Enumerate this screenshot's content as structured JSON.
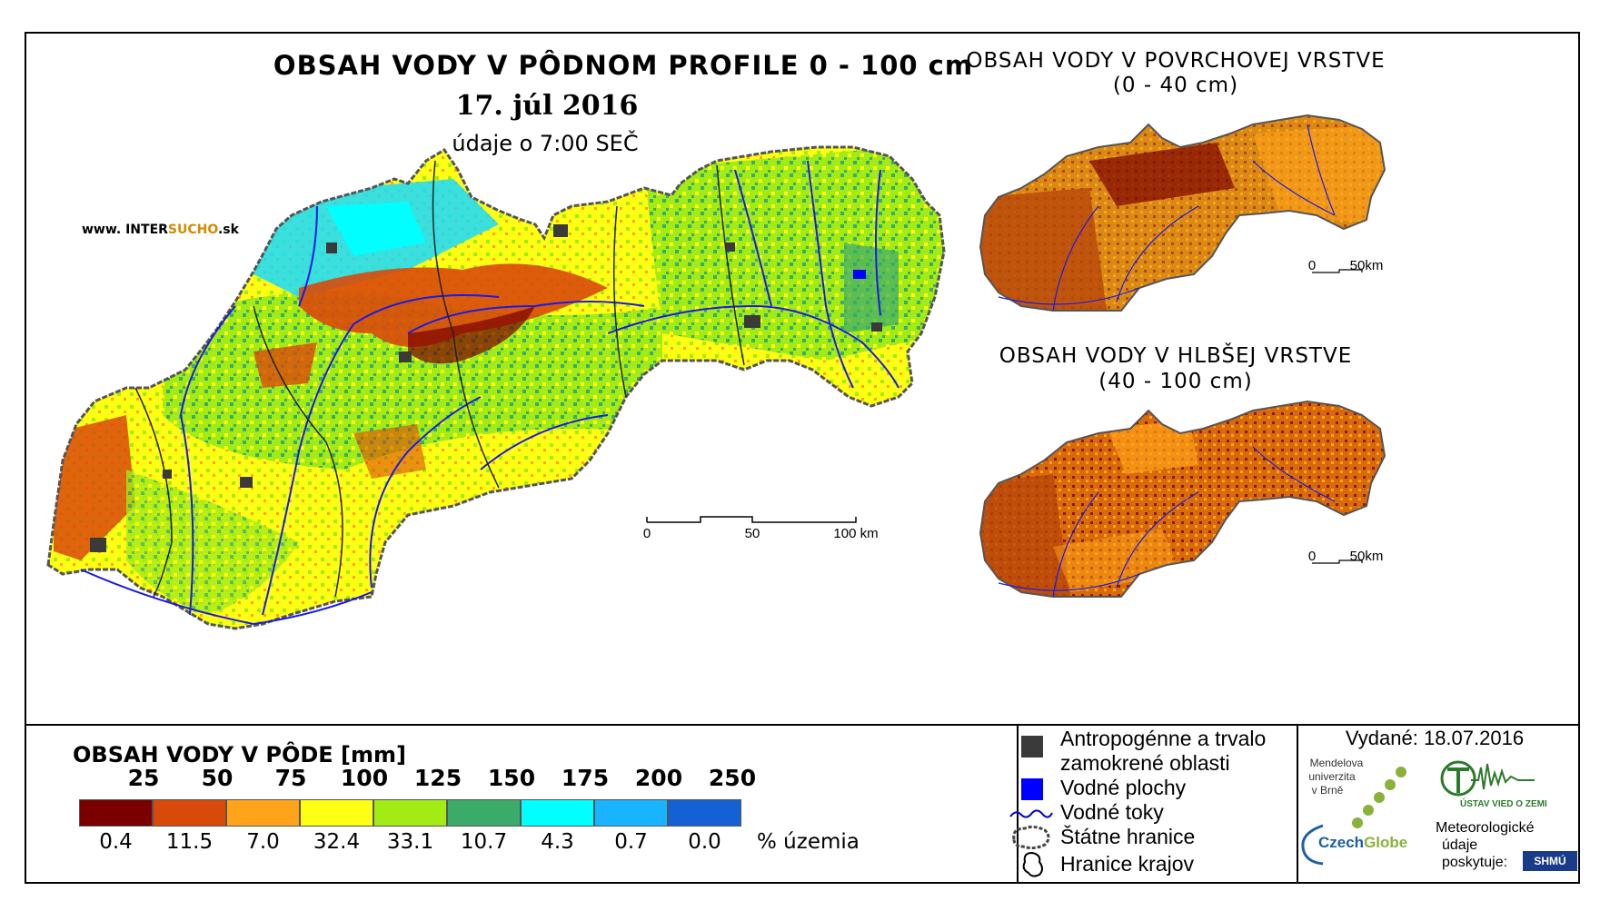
{
  "main_map": {
    "title": "OBSAH VODY V PÔDNOM PROFILE 0 - 100 cm",
    "date": "17. júl 2016",
    "time_note": "údaje o 7:00 SEČ",
    "website_prefix": "www. INTER",
    "website_highlight": "SUCHO",
    "website_suffix": ".sk",
    "scale_labels": [
      "0",
      "50",
      "100 km"
    ]
  },
  "surface_map": {
    "title": "OBSAH VODY V POVRCHOVEJ VRSTVE",
    "subtitle": "(0 - 40 cm)",
    "scale_labels": [
      "0",
      "50km"
    ]
  },
  "deep_map": {
    "title": "OBSAH VODY V HLBŠEJ VRSTVE",
    "subtitle": "(40 - 100 cm)",
    "scale_labels": [
      "0",
      "50km"
    ]
  },
  "legend": {
    "title": "OBSAH VODY V PÔDE [mm]",
    "thresholds": [
      "25",
      "50",
      "75",
      "100",
      "125",
      "150",
      "175",
      "200",
      "250"
    ],
    "colors": [
      "#7a0000",
      "#d94a0a",
      "#ffa31a",
      "#ffff14",
      "#a3eb14",
      "#3cab6a",
      "#00ffff",
      "#19b4ff",
      "#1461d6"
    ],
    "percentages": [
      "0.4",
      "11.5",
      "7.0",
      "32.4",
      "33.1",
      "10.7",
      "4.3",
      "0.7",
      "0.0"
    ],
    "percent_unit": "% územia"
  },
  "symbols": {
    "items": [
      {
        "label_lines": [
          "Antropogénne a trvalo",
          "zamokrené oblasti"
        ],
        "icon": "dark-square-icon",
        "color": "#3a3a3a"
      },
      {
        "label_lines": [
          "Vodné plochy"
        ],
        "icon": "blue-square-icon",
        "color": "#0000ff"
      },
      {
        "label_lines": [
          "Vodné toky"
        ],
        "icon": "river-line-icon",
        "color": "#0000cc"
      },
      {
        "label_lines": [
          "Štátne hranice"
        ],
        "icon": "state-border-icon",
        "color": "#444444"
      },
      {
        "label_lines": [
          "Hranice krajov"
        ],
        "icon": "region-border-icon",
        "color": "#000000"
      }
    ]
  },
  "info": {
    "issued": "Vydané: 18.07.2016",
    "mendel_lines": [
      "Mendelova",
      "univerzita",
      "v Brně"
    ],
    "czechglobe_a": "Czech",
    "czechglobe_b": "Globe",
    "ustav_text": "ÚSTAV VIED O ZEMI",
    "meteo_lines": [
      "Meteorologické",
      "údaje",
      "poskytuje:"
    ],
    "shmu": "SHMÚ"
  }
}
